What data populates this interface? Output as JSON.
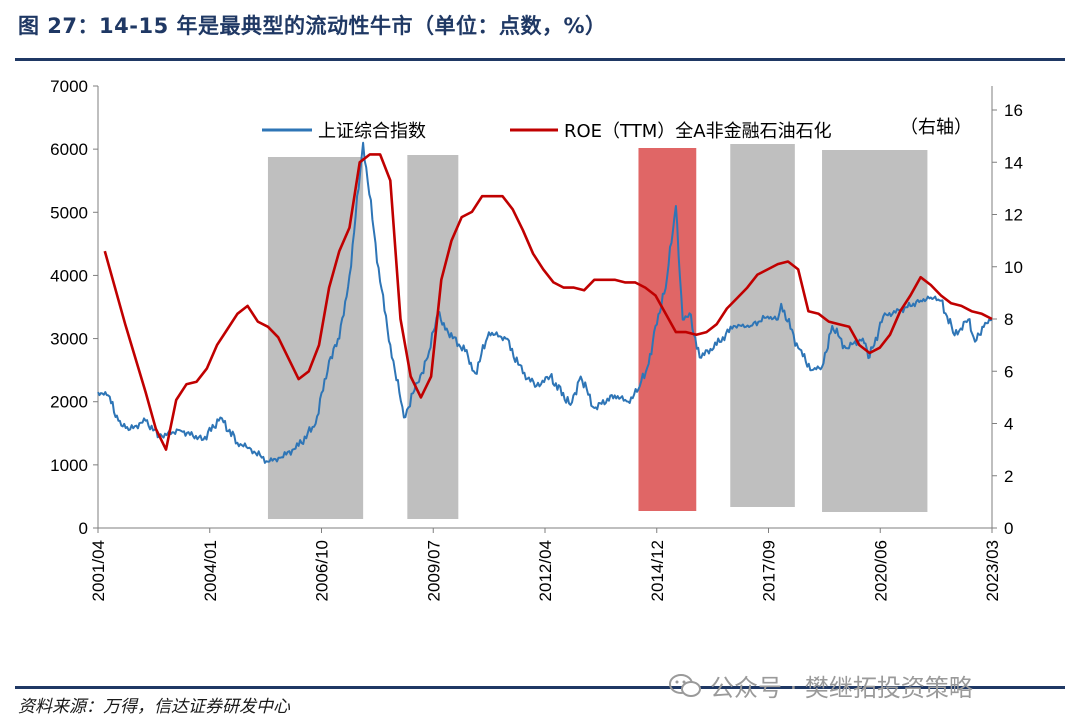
{
  "header": {
    "title": "图 27：14-15 年是最典型的流动性牛市（单位：点数，%）"
  },
  "footer": {
    "source": "资料来源：万得，信达证券研发中心",
    "watermark": "公众号 · 樊继拓投资策略"
  },
  "colors": {
    "index_line": "#2e75b6",
    "roe_line": "#c00000",
    "gray_band": "#bfbfbf",
    "red_band": "#e06666",
    "frame": "#1f3864"
  },
  "chart_data": {
    "type": "line",
    "x_ticks": [
      "2001/04",
      "2004/01",
      "2006/10",
      "2009/07",
      "2012/04",
      "2014/12",
      "2017/09",
      "2020/06",
      "2023/03"
    ],
    "y_left": {
      "ticks": [
        0,
        1000,
        2000,
        3000,
        4000,
        5000,
        6000,
        7000
      ],
      "ylim": [
        0,
        7000
      ]
    },
    "y_right": {
      "ticks": [
        0,
        2,
        4,
        6,
        8,
        10,
        12,
        14,
        16
      ],
      "ylim": [
        0,
        17
      ],
      "note": "（右轴）"
    },
    "legend": {
      "position": "top",
      "entries": [
        "上证综合指数",
        "ROE（TTM）全A非金融石油石化"
      ]
    },
    "shaded_periods": [
      {
        "start": "2005-06",
        "end": "2007-10",
        "color": "gray"
      },
      {
        "start": "2008-11",
        "end": "2010-02",
        "color": "gray"
      },
      {
        "start": "2014-07",
        "end": "2015-12",
        "color": "red"
      },
      {
        "start": "2016-10",
        "end": "2018-05",
        "color": "gray"
      },
      {
        "start": "2019-01",
        "end": "2021-08",
        "color": "gray"
      }
    ],
    "series": [
      {
        "name": "上证综合指数",
        "axis": "left",
        "x": [
          "2001-04",
          "2001-07",
          "2001-10",
          "2002-01",
          "2002-06",
          "2002-10",
          "2003-04",
          "2003-11",
          "2004-04",
          "2004-09",
          "2005-01",
          "2005-06",
          "2005-10",
          "2006-03",
          "2006-08",
          "2006-12",
          "2007-03",
          "2007-06",
          "2007-10",
          "2008-03",
          "2008-06",
          "2008-10",
          "2009-02",
          "2009-05",
          "2009-08",
          "2009-11",
          "2010-04",
          "2010-07",
          "2010-11",
          "2011-04",
          "2011-09",
          "2012-01",
          "2012-05",
          "2012-11",
          "2013-02",
          "2013-06",
          "2013-12",
          "2014-04",
          "2014-07",
          "2014-10",
          "2014-12",
          "2015-03",
          "2015-06",
          "2015-08",
          "2015-10",
          "2016-01",
          "2016-06",
          "2016-11",
          "2017-04",
          "2017-09",
          "2017-12",
          "2018-01",
          "2018-06",
          "2018-10",
          "2019-01",
          "2019-04",
          "2019-08",
          "2020-01",
          "2020-03",
          "2020-07",
          "2020-12",
          "2021-06",
          "2021-09",
          "2021-12",
          "2022-04",
          "2022-08",
          "2022-10",
          "2023-01",
          "2023-03"
        ],
        "values": [
          2150,
          2100,
          1700,
          1550,
          1700,
          1450,
          1550,
          1400,
          1750,
          1350,
          1250,
          1050,
          1120,
          1300,
          1650,
          2650,
          3000,
          4000,
          6100,
          3900,
          2900,
          1750,
          2300,
          2700,
          3400,
          3100,
          2800,
          2450,
          3100,
          3000,
          2450,
          2250,
          2400,
          1950,
          2400,
          1900,
          2100,
          2000,
          2200,
          2600,
          3200,
          3800,
          5100,
          3300,
          3400,
          2700,
          2900,
          3200,
          3200,
          3350,
          3300,
          3550,
          2850,
          2500,
          2550,
          3200,
          2850,
          3000,
          2700,
          3350,
          3450,
          3600,
          3650,
          3600,
          3050,
          3300,
          2950,
          3250,
          3300
        ]
      },
      {
        "name": "ROE（TTM）全A非金融石油石化",
        "axis": "right",
        "x": [
          "2001-06",
          "2001-12",
          "2002-06",
          "2002-09",
          "2002-12",
          "2003-03",
          "2003-06",
          "2003-09",
          "2003-12",
          "2004-03",
          "2004-06",
          "2004-09",
          "2004-12",
          "2005-03",
          "2005-06",
          "2005-09",
          "2005-12",
          "2006-03",
          "2006-06",
          "2006-09",
          "2006-12",
          "2007-03",
          "2007-06",
          "2007-09",
          "2007-12",
          "2008-03",
          "2008-06",
          "2008-09",
          "2008-12",
          "2009-03",
          "2009-06",
          "2009-09",
          "2009-12",
          "2010-03",
          "2010-06",
          "2010-09",
          "2010-12",
          "2011-03",
          "2011-06",
          "2011-09",
          "2011-12",
          "2012-03",
          "2012-06",
          "2012-09",
          "2012-12",
          "2013-03",
          "2013-06",
          "2013-09",
          "2013-12",
          "2014-03",
          "2014-06",
          "2014-09",
          "2014-12",
          "2015-03",
          "2015-06",
          "2015-09",
          "2015-12",
          "2016-03",
          "2016-06",
          "2016-09",
          "2016-12",
          "2017-03",
          "2017-06",
          "2017-09",
          "2017-12",
          "2018-03",
          "2018-06",
          "2018-09",
          "2018-12",
          "2019-03",
          "2019-06",
          "2019-09",
          "2019-12",
          "2020-03",
          "2020-06",
          "2020-09",
          "2020-12",
          "2021-03",
          "2021-06",
          "2021-09",
          "2021-12",
          "2022-03",
          "2022-06",
          "2022-09",
          "2022-12",
          "2023-03"
        ],
        "values": [
          10.6,
          7.8,
          5.2,
          3.8,
          3.0,
          4.9,
          5.5,
          5.6,
          6.1,
          7.0,
          7.6,
          8.2,
          8.5,
          7.9,
          7.7,
          7.3,
          6.5,
          5.7,
          6.0,
          7.0,
          9.2,
          10.6,
          11.5,
          14.0,
          14.3,
          14.3,
          13.3,
          8.0,
          5.8,
          5.0,
          5.8,
          9.5,
          11.0,
          11.9,
          12.1,
          12.7,
          12.7,
          12.7,
          12.2,
          11.4,
          10.5,
          9.9,
          9.4,
          9.2,
          9.2,
          9.1,
          9.5,
          9.5,
          9.5,
          9.4,
          9.4,
          9.2,
          8.9,
          8.2,
          7.5,
          7.5,
          7.4,
          7.5,
          7.8,
          8.4,
          8.8,
          9.2,
          9.7,
          9.9,
          10.1,
          10.2,
          9.9,
          8.3,
          8.2,
          7.9,
          7.8,
          7.7,
          7.0,
          6.7,
          6.9,
          7.4,
          8.3,
          8.9,
          9.6,
          9.3,
          8.9,
          8.6,
          8.5,
          8.3,
          8.2,
          8.0
        ]
      }
    ]
  }
}
